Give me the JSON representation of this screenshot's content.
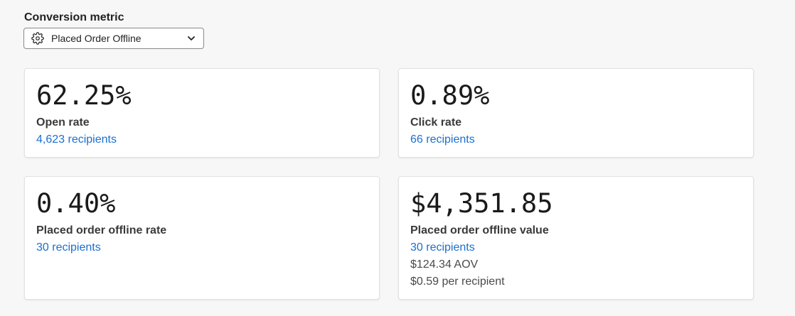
{
  "conversion_metric": {
    "label": "Conversion metric",
    "selected": "Placed Order Offline",
    "icon": "gear-icon",
    "chevron": "chevron-down-icon"
  },
  "cards": [
    {
      "value": "62.25%",
      "title": "Open rate",
      "link": "4,623 recipients"
    },
    {
      "value": "0.89%",
      "title": "Click rate",
      "link": "66 recipients"
    },
    {
      "value": "0.40%",
      "title": "Placed order offline rate",
      "link": "30 recipients"
    },
    {
      "value": "$4,351.85",
      "title": "Placed order offline value",
      "link": "30 recipients",
      "aov": "$124.34 AOV",
      "per_recipient": "$0.59 per recipient"
    }
  ],
  "colors": {
    "link": "#1a6fd1",
    "background": "#f7f7f7",
    "card": "#ffffff"
  }
}
